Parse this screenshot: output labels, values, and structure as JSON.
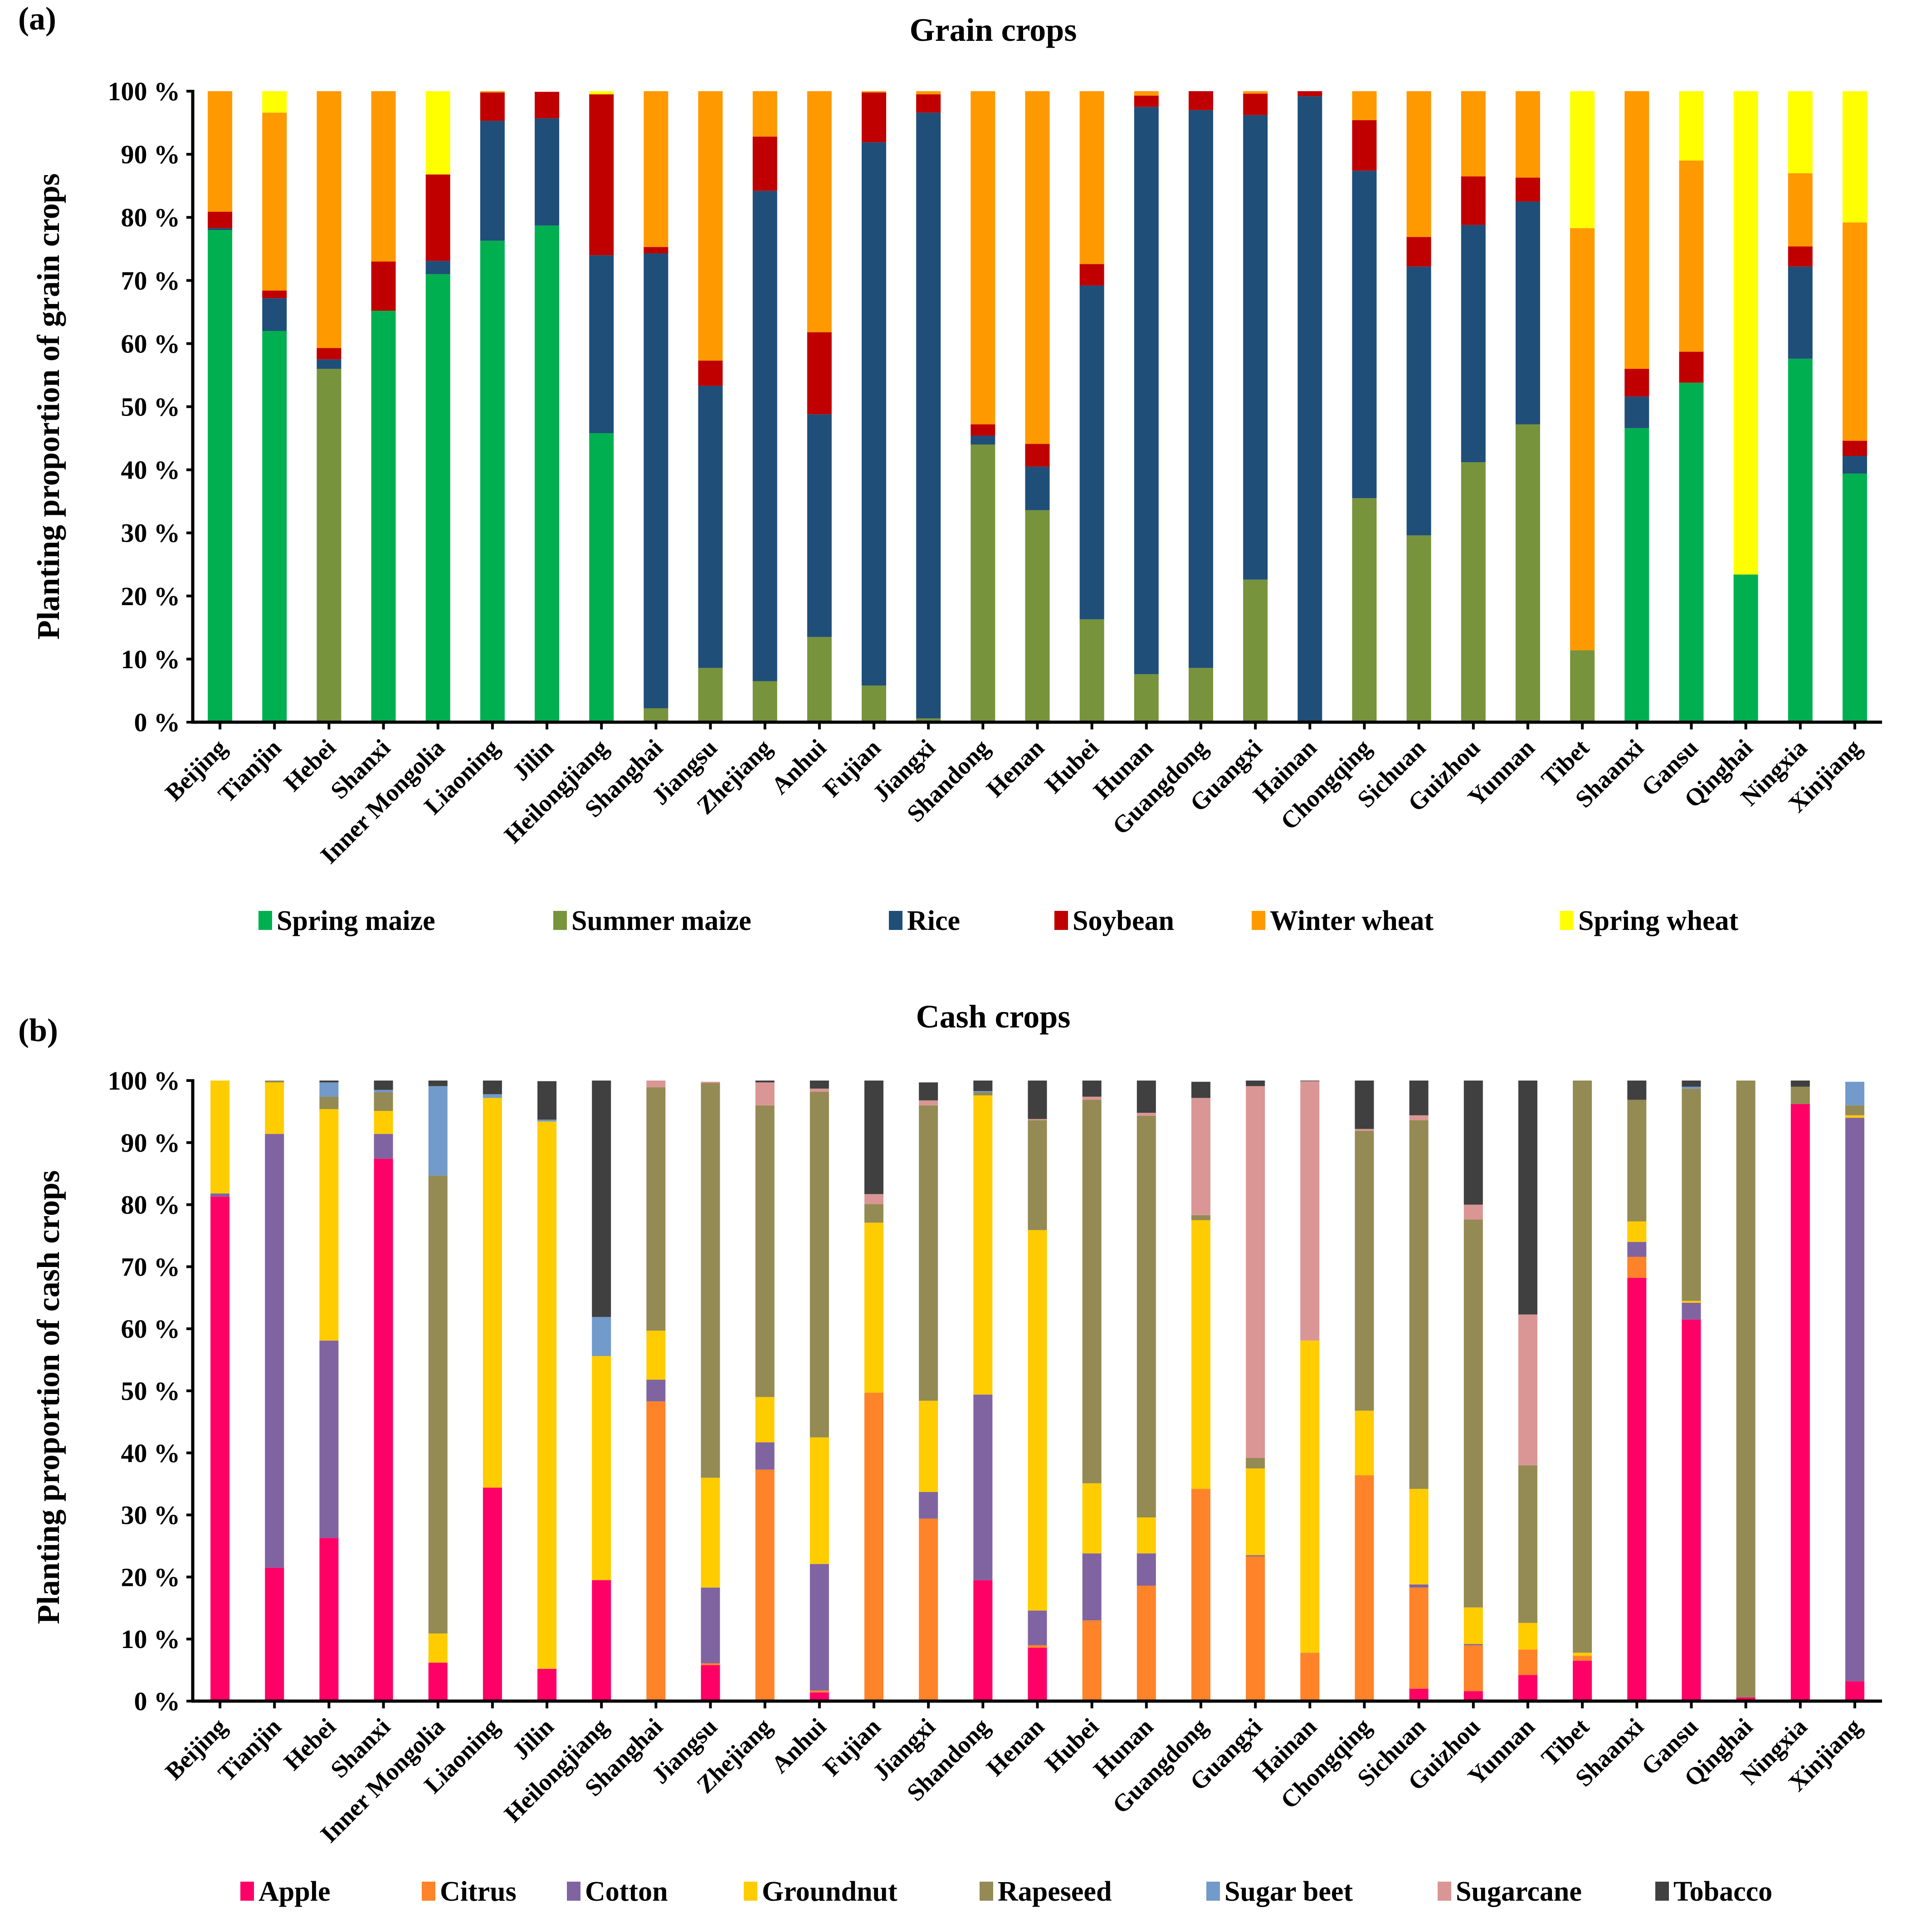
{
  "chart_data": [
    {
      "type": "bar",
      "stacked": true,
      "panel_label": "(a)",
      "title": "Grain crops",
      "xlabel": "",
      "ylabel": "Planting proportion of grain crops",
      "ylim": [
        0,
        100
      ],
      "yticks": [
        "0 %",
        "10 %",
        "20 %",
        "30 %",
        "40 %",
        "50 %",
        "60 %",
        "70 %",
        "80 %",
        "90 %",
        "100 %"
      ],
      "legend_position": "bottom",
      "categories": [
        "Beijing",
        "Tianjin",
        "Hebei",
        "Shanxi",
        "Inner Mongolia",
        "Liaoning",
        "Jilin",
        "Heilongjiang",
        "Shanghai",
        "Jiangsu",
        "Zhejiang",
        "Anhui",
        "Fujian",
        "Jiangxi",
        "Shandong",
        "Henan",
        "Hubei",
        "Hunan",
        "Guangdong",
        "Guangxi",
        "Hainan",
        "Chongqing",
        "Sichuan",
        "Guizhou",
        "Yunnan",
        "Tibet",
        "Shaanxi",
        "Gansu",
        "Qinghai",
        "Ningxia",
        "Xinjiang"
      ],
      "series": [
        {
          "name": "Spring maize",
          "color": "#00b050",
          "values": [
            78.0,
            62.0,
            0,
            65.2,
            71.0,
            76.3,
            78.7,
            45.8,
            0,
            0,
            0,
            0,
            0,
            0,
            0,
            0,
            0,
            0,
            0,
            0,
            0,
            0,
            0,
            0,
            0,
            0,
            46.6,
            53.8,
            23.4,
            57.6,
            39.4
          ]
        },
        {
          "name": "Summer maize",
          "color": "#77933c",
          "values": [
            0,
            0,
            56.0,
            0,
            0,
            0,
            0,
            0,
            2.2,
            8.6,
            6.5,
            13.5,
            5.8,
            0.6,
            44.0,
            33.6,
            16.3,
            7.6,
            8.6,
            22.6,
            0,
            35.5,
            29.6,
            41.2,
            47.2,
            11.4,
            0,
            0,
            0,
            0,
            0
          ]
        },
        {
          "name": "Rice",
          "color": "#1f4e79",
          "values": [
            0.3,
            5.2,
            1.5,
            0,
            2.1,
            19.0,
            17.0,
            28.2,
            72.1,
            44.7,
            77.7,
            35.3,
            86.1,
            96.0,
            1.4,
            6.9,
            52.9,
            89.9,
            88.4,
            73.6,
            99.2,
            51.9,
            42.6,
            37.6,
            35.3,
            0,
            5.0,
            0,
            0,
            14.6,
            2.8
          ]
        },
        {
          "name": "Soybean",
          "color": "#c00000",
          "values": [
            2.6,
            1.2,
            1.8,
            7.8,
            13.7,
            4.5,
            4.2,
            25.5,
            1.0,
            4.0,
            8.6,
            13.0,
            7.9,
            2.9,
            1.8,
            3.6,
            3.4,
            1.8,
            3.0,
            3.4,
            0.8,
            8.0,
            4.7,
            7.7,
            3.8,
            0,
            4.4,
            4.9,
            0,
            3.2,
            2.4
          ]
        },
        {
          "name": "Winter wheat",
          "color": "#ff9900",
          "values": [
            19.1,
            28.2,
            40.7,
            27.0,
            0,
            0.2,
            0,
            0,
            24.7,
            42.7,
            7.2,
            38.2,
            0.2,
            0.5,
            52.8,
            55.9,
            27.4,
            0.7,
            0,
            0.4,
            0,
            4.6,
            23.1,
            13.5,
            13.7,
            66.9,
            44.0,
            30.3,
            0,
            11.6,
            34.6
          ]
        },
        {
          "name": "Spring wheat",
          "color": "#ffff00",
          "values": [
            0,
            3.4,
            0,
            0,
            13.2,
            0,
            0,
            0.5,
            0,
            0,
            0,
            0,
            0,
            0,
            0,
            0,
            0,
            0,
            0,
            0,
            0,
            0,
            0,
            0,
            0,
            21.7,
            0,
            11.0,
            76.6,
            13.0,
            20.8
          ]
        }
      ]
    },
    {
      "type": "bar",
      "stacked": true,
      "panel_label": "(b)",
      "title": "Cash crops",
      "xlabel": "",
      "ylabel": "Planting proportion of cash crops",
      "ylim": [
        0,
        100
      ],
      "yticks": [
        "0 %",
        "10 %",
        "20 %",
        "30 %",
        "40 %",
        "50 %",
        "60 %",
        "70 %",
        "80 %",
        "90 %",
        "100 %"
      ],
      "legend_position": "bottom",
      "categories": [
        "Beijing",
        "Tianjin",
        "Hebei",
        "Shanxi",
        "Inner Mongolia",
        "Liaoning",
        "Jilin",
        "Heilongjiang",
        "Shanghai",
        "Jiangsu",
        "Zhejiang",
        "Anhui",
        "Fujian",
        "Jiangxi",
        "Shandong",
        "Henan",
        "Hubei",
        "Hunan",
        "Guangdong",
        "Guangxi",
        "Hainan",
        "Chongqing",
        "Sichuan",
        "Guizhou",
        "Yunnan",
        "Tibet",
        "Shaanxi",
        "Gansu",
        "Qinghai",
        "Ningxia",
        "Xinjiang"
      ],
      "series": [
        {
          "name": "Apple",
          "color": "#ff0066",
          "values": [
            81.3,
            21.5,
            26.3,
            87.4,
            6.2,
            34.4,
            5.2,
            19.5,
            0,
            5.8,
            0,
            1.4,
            0,
            0,
            19.5,
            8.6,
            0,
            0,
            0,
            0,
            0,
            0,
            2.0,
            1.6,
            4.2,
            6.5,
            68.2,
            61.5,
            0.6,
            96.2,
            3.2
          ]
        },
        {
          "name": "Citrus",
          "color": "#ff8329",
          "values": [
            0,
            0,
            0,
            0,
            0,
            0,
            0,
            0,
            48.3,
            0.3,
            37.3,
            0.3,
            49.7,
            29.4,
            0,
            0.4,
            13.0,
            18.6,
            34.2,
            23.3,
            7.8,
            36.4,
            16.3,
            7.4,
            4.1,
            0.8,
            3.4,
            0,
            0,
            0,
            0
          ]
        },
        {
          "name": "Cotton",
          "color": "#8064a2",
          "values": [
            0.5,
            69.9,
            31.8,
            4.0,
            0,
            0,
            0,
            0,
            3.5,
            12.2,
            4.4,
            20.4,
            0,
            4.3,
            29.9,
            5.6,
            10.8,
            5.2,
            0,
            0.2,
            0,
            0,
            0.5,
            0.2,
            0,
            0,
            2.4,
            2.7,
            0,
            0,
            90.8
          ]
        },
        {
          "name": "Groundnut",
          "color": "#ffcc00",
          "values": [
            18.2,
            8.3,
            37.3,
            3.7,
            4.7,
            62.8,
            88.2,
            36.1,
            7.9,
            17.7,
            7.3,
            20.4,
            27.4,
            14.7,
            48.2,
            61.3,
            11.3,
            5.8,
            43.3,
            14.0,
            50.3,
            10.4,
            15.4,
            5.9,
            4.3,
            0.5,
            3.3,
            0.3,
            0,
            0,
            0.4
          ]
        },
        {
          "name": "Rapeseed",
          "color": "#948a54",
          "values": [
            0,
            0.3,
            2.0,
            3.0,
            73.8,
            0,
            0,
            0,
            39.2,
            63.6,
            47.0,
            55.7,
            3.0,
            47.6,
            0.5,
            17.7,
            61.8,
            64.7,
            0.8,
            1.7,
            0,
            45.1,
            59.4,
            62.5,
            25.4,
            92.2,
            19.6,
            34.2,
            99.4,
            2.8,
            1.6
          ]
        },
        {
          "name": "Sugar beet",
          "color": "#729aca",
          "values": [
            0,
            0,
            2.3,
            0.4,
            14.4,
            0.6,
            0.3,
            6.3,
            0,
            0,
            0,
            0,
            0,
            0,
            0.2,
            0,
            0,
            0,
            0,
            0,
            0,
            0,
            0,
            0,
            0,
            0,
            0,
            0.3,
            0,
            0,
            3.8
          ]
        },
        {
          "name": "Sugarcane",
          "color": "#da9694",
          "values": [
            0,
            0,
            0,
            0,
            0,
            0,
            0,
            0,
            1.1,
            0.2,
            3.7,
            0.5,
            1.6,
            0.8,
            0,
            0.2,
            0.5,
            0.5,
            18.9,
            59.9,
            41.8,
            0.3,
            0.8,
            2.4,
            24.3,
            0,
            0,
            0,
            0,
            0,
            0
          ]
        },
        {
          "name": "Tobacco",
          "color": "#404040",
          "values": [
            0,
            0,
            0.3,
            1.5,
            0.9,
            2.2,
            6.2,
            38.1,
            0,
            0,
            0.3,
            1.3,
            18.3,
            2.9,
            1.7,
            6.2,
            2.6,
            5.2,
            2.6,
            0.9,
            0.1,
            7.8,
            5.6,
            20.0,
            37.7,
            0,
            3.1,
            1.0,
            0,
            1.0,
            0
          ]
        }
      ]
    }
  ]
}
